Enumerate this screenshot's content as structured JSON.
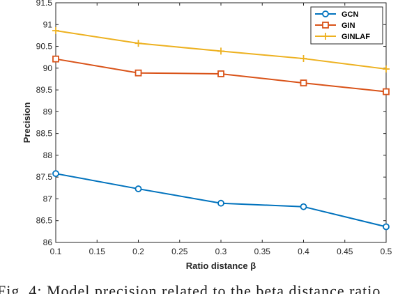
{
  "chart_data": {
    "type": "line",
    "xlabel": "Ratio distance β",
    "ylabel": "Precision",
    "x": [
      0.1,
      0.2,
      0.3,
      0.4,
      0.5
    ],
    "xlim": [
      0.1,
      0.5
    ],
    "ylim": [
      86,
      91.5
    ],
    "xticks": [
      "0.1",
      "0.15",
      "0.2",
      "0.25",
      "0.3",
      "0.35",
      "0.4",
      "0.45",
      "0.5"
    ],
    "yticks": [
      "86",
      "86.5",
      "87",
      "87.5",
      "88",
      "88.5",
      "89",
      "89.5",
      "90",
      "90.5",
      "91",
      "91.5"
    ],
    "grid": false,
    "legend_position": "top-right",
    "series": [
      {
        "name": "GCN",
        "marker": "circle",
        "color": "#0072BD",
        "values": [
          87.58,
          87.23,
          86.9,
          86.82,
          86.36
        ]
      },
      {
        "name": "GIN",
        "marker": "square",
        "color": "#D95319",
        "values": [
          90.21,
          89.89,
          89.87,
          89.66,
          89.46
        ]
      },
      {
        "name": "GINLAF",
        "marker": "plus",
        "color": "#EDB120",
        "values": [
          90.86,
          90.57,
          90.39,
          90.22,
          89.98
        ]
      }
    ]
  },
  "caption": "Fig. 4: Model precision related to the beta distance ratio"
}
